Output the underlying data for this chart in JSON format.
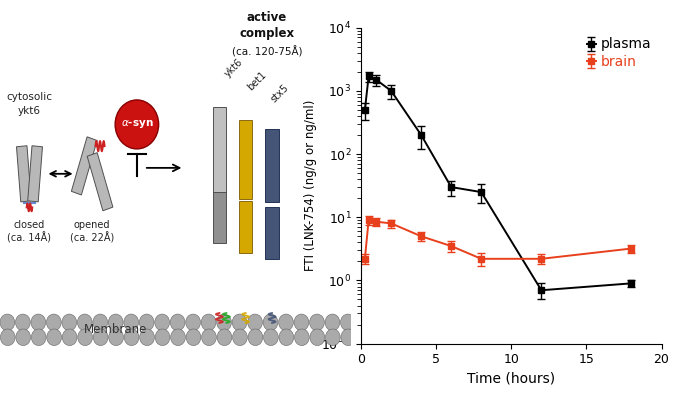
{
  "plasma_x": [
    0.25,
    0.5,
    1,
    2,
    4,
    6,
    8,
    12,
    18
  ],
  "plasma_y": [
    500,
    1700,
    1500,
    1000,
    200,
    30,
    25,
    0.7,
    0.9
  ],
  "plasma_yerr_lo": [
    150,
    300,
    300,
    250,
    80,
    8,
    8,
    0.2,
    0.1
  ],
  "plasma_yerr_hi": [
    150,
    300,
    300,
    250,
    80,
    8,
    8,
    0.2,
    0.1
  ],
  "brain_x": [
    0.25,
    0.5,
    1,
    2,
    4,
    6,
    8,
    12,
    18
  ],
  "brain_y": [
    2.2,
    9.0,
    8.5,
    8.0,
    5.0,
    3.5,
    2.2,
    2.2,
    3.2
  ],
  "brain_yerr_lo": [
    0.4,
    1.5,
    1.2,
    1.2,
    0.8,
    0.7,
    0.5,
    0.4,
    0.5
  ],
  "brain_yerr_hi": [
    0.4,
    1.5,
    1.2,
    1.2,
    0.8,
    0.7,
    0.5,
    0.4,
    0.5
  ],
  "plasma_color": "#000000",
  "brain_color": "#e8401c",
  "ylabel": "FTI (LNK-754) (ng/g or ng/ml)",
  "xlabel": "Time (hours)",
  "ylim_lo": 0.1,
  "ylim_hi": 10000,
  "xlim_lo": 0,
  "xlim_hi": 20,
  "xticks": [
    0,
    5,
    10,
    15,
    20
  ],
  "legend_plasma": "plasma",
  "legend_brain": "brain",
  "figure_bg": "#ffffff",
  "snare_color": "#b8b8b8",
  "snare_edge": "#505050",
  "bet1_color": "#d4a800",
  "bet1_edge": "#8b6914",
  "stx5_color": "#445577",
  "stx5_edge": "#223355",
  "mem_color": "#aaaaaa",
  "mem_edge": "#666666",
  "alpha_syn_color": "#cc1111",
  "alpha_syn_edge": "#880000"
}
